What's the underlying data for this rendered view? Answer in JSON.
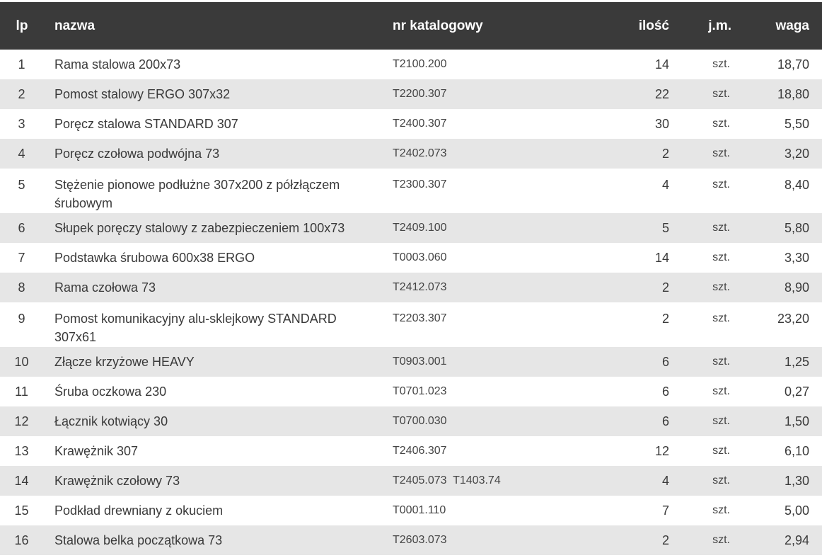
{
  "table": {
    "headers": {
      "lp": "lp",
      "name": "nazwa",
      "catalog": "nr katalogowy",
      "qty": "ilość",
      "unit": "j.m.",
      "weight": "waga"
    },
    "rows": [
      {
        "lp": "1",
        "name": "Rama stalowa 200x73",
        "catalog": "T2100.200",
        "qty": "14",
        "unit": "szt.",
        "weight": "18,70"
      },
      {
        "lp": "2",
        "name": "Pomost stalowy ERGO 307x32",
        "catalog": "T2200.307",
        "qty": "22",
        "unit": "szt.",
        "weight": "18,80"
      },
      {
        "lp": "3",
        "name": "Poręcz stalowa STANDARD 307",
        "catalog": "T2400.307",
        "qty": "30",
        "unit": "szt.",
        "weight": "5,50"
      },
      {
        "lp": "4",
        "name": "Poręcz czołowa podwójna 73",
        "catalog": "T2402.073",
        "qty": "2",
        "unit": "szt.",
        "weight": "3,20"
      },
      {
        "lp": "5",
        "name": "Stężenie pionowe podłużne 307x200 z półzłączem śrubowym",
        "catalog": "T2300.307",
        "qty": "4",
        "unit": "szt.",
        "weight": "8,40"
      },
      {
        "lp": "6",
        "name": "Słupek poręczy stalowy z zabezpieczeniem 100x73",
        "catalog": "T2409.100",
        "qty": "5",
        "unit": "szt.",
        "weight": "5,80"
      },
      {
        "lp": "7",
        "name": "Podstawka śrubowa 600x38 ERGO",
        "catalog": "T0003.060",
        "qty": "14",
        "unit": "szt.",
        "weight": "3,30"
      },
      {
        "lp": "8",
        "name": "Rama czołowa 73",
        "catalog": "T2412.073",
        "qty": "2",
        "unit": "szt.",
        "weight": "8,90"
      },
      {
        "lp": "9",
        "name": "Pomost komunikacyjny alu-sklejkowy STANDARD 307x61",
        "catalog": "T2203.307",
        "qty": "2",
        "unit": "szt.",
        "weight": "23,20"
      },
      {
        "lp": "10",
        "name": "Złącze krzyżowe HEAVY",
        "catalog": "T0903.001",
        "qty": "6",
        "unit": "szt.",
        "weight": "1,25"
      },
      {
        "lp": "11",
        "name": "Śruba oczkowa 230",
        "catalog": "T0701.023",
        "qty": "6",
        "unit": "szt.",
        "weight": "0,27"
      },
      {
        "lp": "12",
        "name": "Łącznik kotwiący 30",
        "catalog": "T0700.030",
        "qty": "6",
        "unit": "szt.",
        "weight": "1,50"
      },
      {
        "lp": "13",
        "name": "Krawężnik 307",
        "catalog": "T2406.307",
        "qty": "12",
        "unit": "szt.",
        "weight": "6,10"
      },
      {
        "lp": "14",
        "name": "Krawężnik czołowy 73",
        "catalog": "T2405.073  T1403.74",
        "qty": "4",
        "unit": "szt.",
        "weight": "1,30"
      },
      {
        "lp": "15",
        "name": "Podkład drewniany z okuciem",
        "catalog": "T0001.110",
        "qty": "7",
        "unit": "szt.",
        "weight": "5,00"
      },
      {
        "lp": "16",
        "name": "Stalowa belka początkowa 73",
        "catalog": "T2603.073",
        "qty": "2",
        "unit": "szt.",
        "weight": "2,94"
      }
    ]
  }
}
